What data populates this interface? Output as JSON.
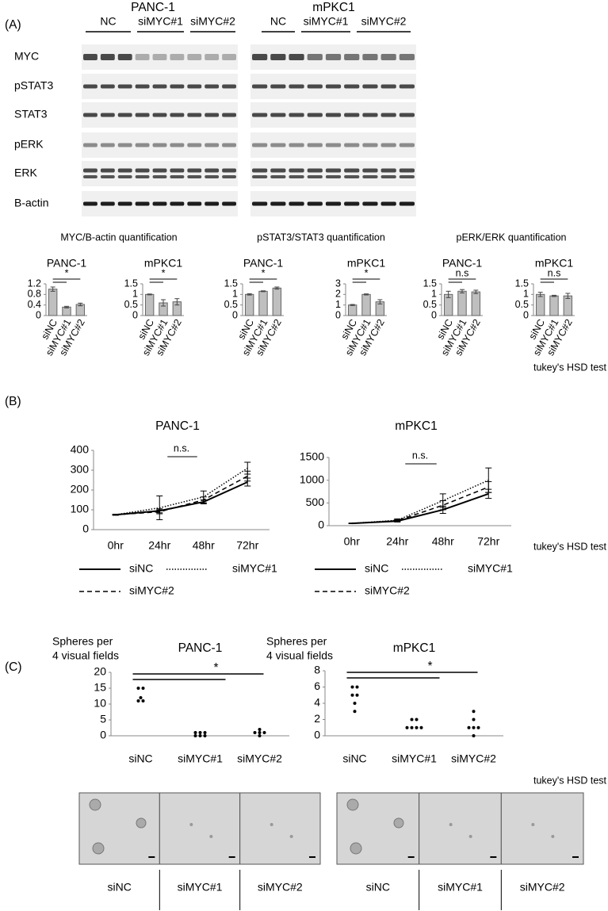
{
  "panel_labels": [
    "(A)",
    "(B)",
    "(C)"
  ],
  "blot": {
    "cell_lines": [
      "PANC-1",
      "mPKC1"
    ],
    "lane_groups": [
      "NC",
      "siMYC#1",
      "siMYC#2"
    ],
    "proteins": [
      "MYC",
      "pSTAT3",
      "STAT3",
      "pERK",
      "ERK",
      "B-actin"
    ]
  },
  "quantification_titles": [
    "MYC/B-actin quantification",
    "pSTAT3/STAT3 quantification",
    "pERK/ERK quantification"
  ],
  "test_note": "tukey's HSD test",
  "chart_data": [
    {
      "type": "bar",
      "title": "PANC-1",
      "categories": [
        "siNC",
        "siMYC#1",
        "siMYC#2"
      ],
      "values": [
        1.0,
        0.32,
        0.42
      ],
      "errors": [
        0.08,
        0.03,
        0.05
      ],
      "color": "#bfbfbf",
      "ylim": [
        0,
        1.2
      ],
      "yticks": [
        0,
        0.4,
        0.8,
        1.2
      ],
      "significance": "*"
    },
    {
      "type": "bar",
      "title": "mPKC1",
      "categories": [
        "siNC",
        "siMYC#1",
        "siMYC#2"
      ],
      "values": [
        1.0,
        0.6,
        0.65
      ],
      "errors": [
        0.02,
        0.15,
        0.15
      ],
      "color": "#bfbfbf",
      "ylim": [
        0,
        1.5
      ],
      "yticks": [
        0,
        0.5,
        1,
        1.5
      ],
      "significance": "*"
    },
    {
      "type": "bar",
      "title": "PANC-1",
      "categories": [
        "siNC",
        "siMYC#1",
        "siMYC#2"
      ],
      "values": [
        1.0,
        1.15,
        1.3
      ],
      "errors": [
        0.03,
        0.02,
        0.05
      ],
      "color": "#bfbfbf",
      "ylim": [
        0,
        1.5
      ],
      "yticks": [
        0,
        0.5,
        1,
        1.5
      ],
      "significance": "*"
    },
    {
      "type": "bar",
      "title": "mPKC1",
      "categories": [
        "siNC",
        "siMYC#1",
        "siMYC#2"
      ],
      "values": [
        1.0,
        2.0,
        1.3
      ],
      "errors": [
        0.05,
        0.05,
        0.2
      ],
      "color": "#bfbfbf",
      "ylim": [
        0,
        3
      ],
      "yticks": [
        0,
        1,
        2,
        3
      ],
      "significance": "*"
    },
    {
      "type": "bar",
      "title": "PANC-1",
      "categories": [
        "siNC",
        "siMYC#1",
        "siMYC#2"
      ],
      "values": [
        1.0,
        1.15,
        1.12
      ],
      "errors": [
        0.15,
        0.08,
        0.08
      ],
      "color": "#bfbfbf",
      "ylim": [
        0,
        1.5
      ],
      "yticks": [
        0,
        0.5,
        1,
        1.5
      ],
      "significance": "n.s"
    },
    {
      "type": "bar",
      "title": "mPKC1",
      "categories": [
        "siNC",
        "siMYC#1",
        "siMYC#2"
      ],
      "values": [
        1.0,
        0.93,
        0.93
      ],
      "errors": [
        0.1,
        0.03,
        0.12
      ],
      "color": "#bfbfbf",
      "ylim": [
        0,
        1.5
      ],
      "yticks": [
        0,
        0.5,
        1,
        1.5
      ],
      "significance": "n.s"
    },
    {
      "type": "line",
      "title": "PANC-1",
      "categories": [
        "0hr",
        "24hr",
        "48hr",
        "72hr"
      ],
      "ylim": [
        0,
        400
      ],
      "yticks": [
        0,
        100,
        200,
        300,
        400
      ],
      "significance": "n.s.",
      "series": [
        {
          "name": "siNC",
          "color": "#000000",
          "dash": "solid",
          "values": [
            75,
            95,
            140,
            240
          ],
          "errors": [
            2,
            10,
            10,
            20
          ]
        },
        {
          "name": "siMYC#1",
          "color": "#000000",
          "dash": "dotted",
          "values": [
            75,
            110,
            165,
            310
          ],
          "errors": [
            2,
            60,
            30,
            30
          ]
        },
        {
          "name": "siMYC#2",
          "color": "#000000",
          "dash": "dashed",
          "values": [
            75,
            90,
            150,
            270
          ],
          "errors": [
            2,
            10,
            15,
            25
          ]
        }
      ]
    },
    {
      "type": "line",
      "title": "mPKC1",
      "categories": [
        "0hr",
        "24hr",
        "48hr",
        "72hr"
      ],
      "ylim": [
        0,
        1500
      ],
      "yticks": [
        0,
        500,
        1000,
        1500
      ],
      "significance": "n.s.",
      "series": [
        {
          "name": "siNC",
          "color": "#000000",
          "dash": "solid",
          "values": [
            50,
            100,
            350,
            700
          ],
          "errors": [
            5,
            20,
            80,
            100
          ]
        },
        {
          "name": "siMYC#1",
          "color": "#000000",
          "dash": "dotted",
          "values": [
            50,
            120,
            550,
            1000
          ],
          "errors": [
            5,
            30,
            150,
            270
          ]
        },
        {
          "name": "siMYC#2",
          "color": "#000000",
          "dash": "dashed",
          "values": [
            50,
            110,
            450,
            850
          ],
          "errors": [
            5,
            20,
            100,
            120
          ]
        }
      ]
    },
    {
      "type": "strip",
      "title": "PANC-1",
      "ylabel": [
        "Spheres per",
        "4 visual fields"
      ],
      "categories": [
        "siNC",
        "siMYC#1",
        "siMYC#2"
      ],
      "values": [
        [
          15,
          15,
          12,
          11,
          11
        ],
        [
          1,
          1,
          1,
          0,
          0,
          0
        ],
        [
          2,
          1,
          1,
          1,
          0
        ]
      ],
      "color": "#000000",
      "ylim": [
        0,
        20
      ],
      "yticks": [
        0,
        5,
        10,
        15,
        20
      ],
      "significance": "*"
    },
    {
      "type": "strip",
      "title": "mPKC1",
      "ylabel": [
        "Spheres per",
        "4 visual fields"
      ],
      "categories": [
        "siNC",
        "siMYC#1",
        "siMYC#2"
      ],
      "values": [
        [
          6,
          6,
          5,
          5,
          4,
          3
        ],
        [
          2,
          2,
          1,
          1,
          1,
          1
        ],
        [
          3,
          2,
          1,
          1,
          1,
          0
        ]
      ],
      "color": "#000000",
      "ylim": [
        0,
        8
      ],
      "yticks": [
        0,
        2,
        4,
        6,
        8
      ],
      "significance": "*"
    }
  ]
}
